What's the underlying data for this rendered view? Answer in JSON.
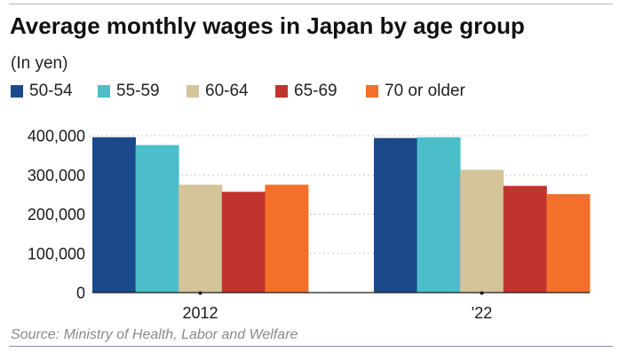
{
  "chart_data": {
    "type": "bar",
    "title": "Average monthly wages in Japan by age group",
    "subtitle": "(In yen)",
    "categories": [
      "2012",
      "'22"
    ],
    "series": [
      {
        "name": "50-54",
        "color": "#1b4a8a",
        "values": [
          396000,
          394000
        ]
      },
      {
        "name": "55-59",
        "color": "#4bbec9",
        "values": [
          376000,
          396000
        ]
      },
      {
        "name": "60-64",
        "color": "#d4c49a",
        "values": [
          275000,
          313000
        ]
      },
      {
        "name": "65-69",
        "color": "#c1332d",
        "values": [
          257000,
          272000
        ]
      },
      {
        "name": "70 or older",
        "color": "#f36f2a",
        "values": [
          275000,
          251000
        ]
      }
    ],
    "ylim": [
      0,
      400000
    ],
    "yticks": [
      0,
      100000,
      200000,
      300000,
      400000
    ],
    "ytick_labels": [
      "0",
      "100,000",
      "200,000",
      "300,000",
      "400,000"
    ],
    "grid": true,
    "legend_position": "top",
    "xlabel": "",
    "ylabel": ""
  },
  "source": "Source: Ministry of Health, Labor and Welfare"
}
